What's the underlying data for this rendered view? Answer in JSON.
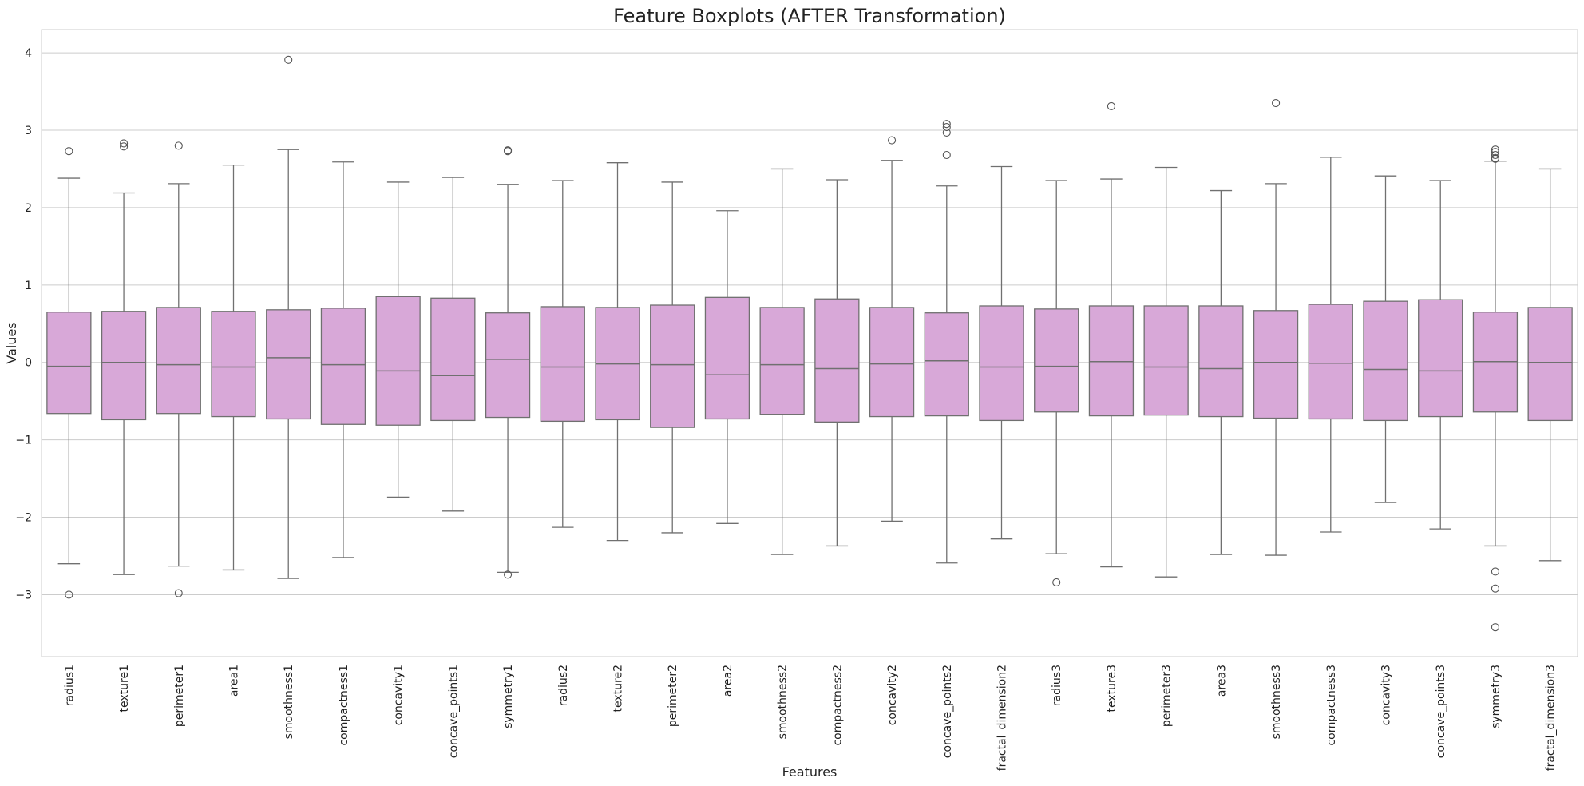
{
  "chart_data": {
    "type": "boxplot",
    "title": "Feature Boxplots (AFTER Transformation)",
    "xlabel": "Features",
    "ylabel": "Values",
    "ylim": [
      -3.8,
      4.3
    ],
    "yticks": [
      -3,
      -2,
      -1,
      0,
      1,
      2,
      3,
      4
    ],
    "grid": true,
    "legend": "none",
    "colors": {
      "box_fill": "#d8a8d8",
      "box_edge": "#707070",
      "grid": "#cccccc",
      "outlier_edge": "#555555"
    },
    "categories": [
      "radius1",
      "texture1",
      "perimeter1",
      "area1",
      "smoothness1",
      "compactness1",
      "concavity1",
      "concave_points1",
      "symmetry1",
      "radius2",
      "texture2",
      "perimeter2",
      "area2",
      "smoothness2",
      "compactness2",
      "concavity2",
      "concave_points2",
      "fractal_dimension2",
      "radius3",
      "texture3",
      "perimeter3",
      "area3",
      "smoothness3",
      "compactness3",
      "concavity3",
      "concave_points3",
      "symmetry3",
      "fractal_dimension3"
    ],
    "boxes": [
      {
        "wlo": -2.6,
        "q1": -0.66,
        "med": -0.05,
        "q3": 0.65,
        "whi": 2.38,
        "outliers": [
          2.73,
          -3.0
        ]
      },
      {
        "wlo": -2.74,
        "q1": -0.74,
        "med": 0.0,
        "q3": 0.66,
        "whi": 2.19,
        "outliers": [
          2.83,
          2.79
        ]
      },
      {
        "wlo": -2.63,
        "q1": -0.66,
        "med": -0.03,
        "q3": 0.71,
        "whi": 2.31,
        "outliers": [
          2.8,
          -2.98
        ]
      },
      {
        "wlo": -2.68,
        "q1": -0.7,
        "med": -0.06,
        "q3": 0.66,
        "whi": 2.55,
        "outliers": []
      },
      {
        "wlo": -2.79,
        "q1": -0.73,
        "med": 0.06,
        "q3": 0.68,
        "whi": 2.75,
        "outliers": [
          3.91
        ]
      },
      {
        "wlo": -2.52,
        "q1": -0.8,
        "med": -0.03,
        "q3": 0.7,
        "whi": 2.59,
        "outliers": []
      },
      {
        "wlo": -1.74,
        "q1": -0.81,
        "med": -0.11,
        "q3": 0.85,
        "whi": 2.33,
        "outliers": []
      },
      {
        "wlo": -1.92,
        "q1": -0.75,
        "med": -0.17,
        "q3": 0.83,
        "whi": 2.39,
        "outliers": []
      },
      {
        "wlo": -2.71,
        "q1": -0.71,
        "med": 0.04,
        "q3": 0.64,
        "whi": 2.3,
        "outliers": [
          2.74,
          2.73,
          -2.74
        ]
      },
      {
        "wlo": -2.13,
        "q1": -0.76,
        "med": -0.06,
        "q3": 0.72,
        "whi": 2.35,
        "outliers": []
      },
      {
        "wlo": -2.3,
        "q1": -0.74,
        "med": -0.02,
        "q3": 0.71,
        "whi": 2.58,
        "outliers": []
      },
      {
        "wlo": -2.2,
        "q1": -0.84,
        "med": -0.03,
        "q3": 0.74,
        "whi": 2.33,
        "outliers": []
      },
      {
        "wlo": -2.08,
        "q1": -0.73,
        "med": -0.16,
        "q3": 0.84,
        "whi": 1.96,
        "outliers": []
      },
      {
        "wlo": -2.48,
        "q1": -0.67,
        "med": -0.03,
        "q3": 0.71,
        "whi": 2.5,
        "outliers": []
      },
      {
        "wlo": -2.37,
        "q1": -0.77,
        "med": -0.08,
        "q3": 0.82,
        "whi": 2.36,
        "outliers": []
      },
      {
        "wlo": -2.05,
        "q1": -0.7,
        "med": -0.02,
        "q3": 0.71,
        "whi": 2.61,
        "outliers": [
          2.87
        ]
      },
      {
        "wlo": -2.59,
        "q1": -0.69,
        "med": 0.02,
        "q3": 0.64,
        "whi": 2.28,
        "outliers": [
          3.08,
          3.04,
          2.97,
          2.68
        ]
      },
      {
        "wlo": -2.28,
        "q1": -0.75,
        "med": -0.06,
        "q3": 0.73,
        "whi": 2.53,
        "outliers": []
      },
      {
        "wlo": -2.47,
        "q1": -0.64,
        "med": -0.05,
        "q3": 0.69,
        "whi": 2.35,
        "outliers": [
          -2.84
        ]
      },
      {
        "wlo": -2.64,
        "q1": -0.69,
        "med": 0.01,
        "q3": 0.73,
        "whi": 2.37,
        "outliers": [
          3.31
        ]
      },
      {
        "wlo": -2.77,
        "q1": -0.68,
        "med": -0.06,
        "q3": 0.73,
        "whi": 2.52,
        "outliers": []
      },
      {
        "wlo": -2.48,
        "q1": -0.7,
        "med": -0.08,
        "q3": 0.73,
        "whi": 2.22,
        "outliers": []
      },
      {
        "wlo": -2.49,
        "q1": -0.72,
        "med": 0.0,
        "q3": 0.67,
        "whi": 2.31,
        "outliers": [
          3.35
        ]
      },
      {
        "wlo": -2.19,
        "q1": -0.73,
        "med": -0.01,
        "q3": 0.75,
        "whi": 2.65,
        "outliers": []
      },
      {
        "wlo": -1.81,
        "q1": -0.75,
        "med": -0.09,
        "q3": 0.79,
        "whi": 2.41,
        "outliers": []
      },
      {
        "wlo": -2.15,
        "q1": -0.7,
        "med": -0.11,
        "q3": 0.81,
        "whi": 2.35,
        "outliers": []
      },
      {
        "wlo": -2.37,
        "q1": -0.64,
        "med": 0.01,
        "q3": 0.65,
        "whi": 2.6,
        "outliers": [
          2.75,
          2.72,
          2.68,
          2.64,
          2.63,
          -2.7,
          -2.92,
          -3.42
        ]
      },
      {
        "wlo": -2.56,
        "q1": -0.75,
        "med": 0.0,
        "q3": 0.71,
        "whi": 2.5,
        "outliers": []
      }
    ]
  }
}
